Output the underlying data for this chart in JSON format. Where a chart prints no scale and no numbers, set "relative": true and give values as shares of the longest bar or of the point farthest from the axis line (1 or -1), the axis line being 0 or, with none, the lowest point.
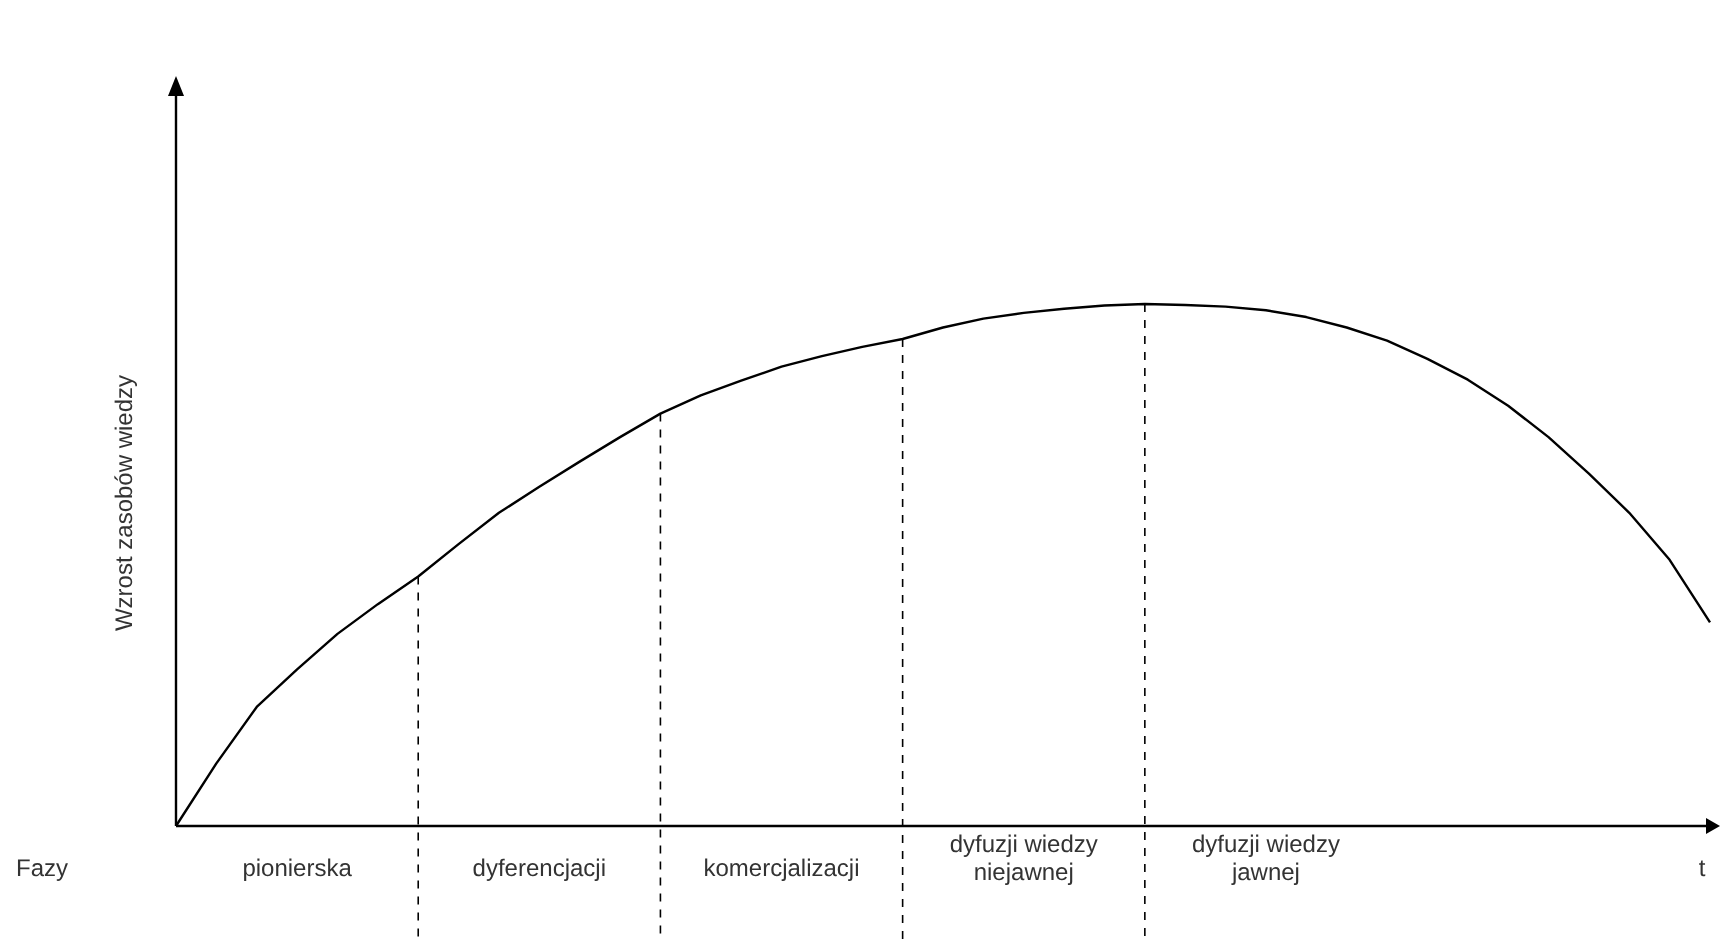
{
  "chart_data": {
    "type": "line",
    "relative": true,
    "ylabel": "Wzrost zasobów wiedzy",
    "xlabel": "t",
    "line_style": "solid",
    "grid": "x",
    "annotations": [
      "Fazy"
    ],
    "categories": [
      null,
      null,
      null,
      "pionierska",
      null,
      null,
      null,
      null,
      null,
      "dyferencjacji",
      null,
      null,
      null,
      null,
      null,
      "komercjalizacji",
      null,
      null,
      null,
      null,
      null,
      "dyfuzji wiedzy niejawnej",
      null,
      null,
      null,
      null,
      null,
      "dyfuzji wiedzy jawnej",
      null,
      null,
      null,
      null,
      null,
      null,
      null,
      null,
      null,
      null,
      null
    ],
    "series": [
      {
        "color": "#000000",
        "values": [
          0,
          0.12,
          0.228,
          0.3,
          0.368,
          0.425,
          0.478,
          0.54,
          0.6,
          0.65,
          0.698,
          0.745,
          0.79,
          0.825,
          0.853,
          0.88,
          0.9,
          0.918,
          0.933,
          0.955,
          0.972,
          0.983,
          0.991,
          0.997,
          1,
          0.998,
          0.995,
          0.988,
          0.975,
          0.955,
          0.93,
          0.895,
          0.855,
          0.805,
          0.745,
          0.675,
          0.6,
          0.51,
          0.39
        ]
      }
    ]
  }
}
